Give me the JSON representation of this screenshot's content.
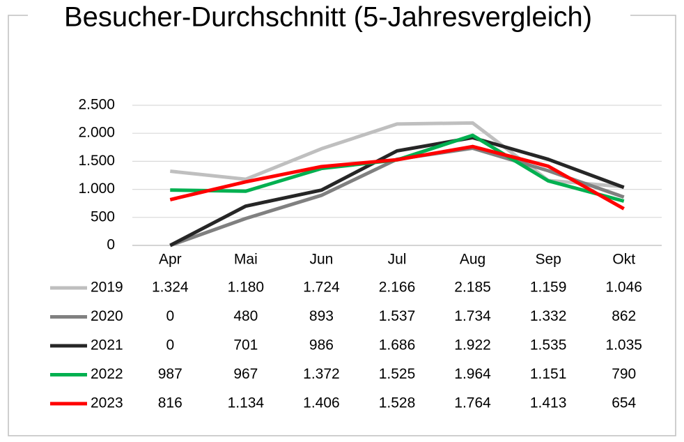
{
  "chart_data": {
    "type": "line",
    "title": "Besucher-Durchschnitt (5-Jahresvergleich)",
    "categories": [
      "Apr",
      "Mai",
      "Jun",
      "Jul",
      "Aug",
      "Sep",
      "Okt"
    ],
    "series": [
      {
        "name": "2019",
        "color": "#bfbfbf",
        "values": [
          1324,
          1180,
          1724,
          2166,
          2185,
          1159,
          1046
        ],
        "value_labels": [
          "1.324",
          "1.180",
          "1.724",
          "2.166",
          "2.185",
          "1.159",
          "1.046"
        ]
      },
      {
        "name": "2020",
        "color": "#808080",
        "values": [
          0,
          480,
          893,
          1537,
          1734,
          1332,
          862
        ],
        "value_labels": [
          "0",
          "480",
          "893",
          "1.537",
          "1.734",
          "1.332",
          "862"
        ]
      },
      {
        "name": "2021",
        "color": "#262626",
        "values": [
          0,
          701,
          986,
          1686,
          1922,
          1535,
          1035
        ],
        "value_labels": [
          "0",
          "701",
          "986",
          "1.686",
          "1.922",
          "1.535",
          "1.035"
        ]
      },
      {
        "name": "2022",
        "color": "#00b050",
        "values": [
          987,
          967,
          1372,
          1525,
          1964,
          1151,
          790
        ],
        "value_labels": [
          "987",
          "967",
          "1.372",
          "1.525",
          "1.964",
          "1.151",
          "790"
        ]
      },
      {
        "name": "2023",
        "color": "#ff0000",
        "values": [
          816,
          1134,
          1406,
          1528,
          1764,
          1413,
          654
        ],
        "value_labels": [
          "816",
          "1.134",
          "1.406",
          "1.528",
          "1.764",
          "1.413",
          "654"
        ]
      }
    ],
    "ylim": [
      0,
      2500
    ],
    "yticks": [
      0,
      500,
      {
        "value": 1000,
        "label": "1.000"
      },
      {
        "value": 1500,
        "label": "1.500"
      },
      {
        "value": 2000,
        "label": "2.000"
      },
      {
        "value": 2500,
        "label": "2.500"
      }
    ],
    "grid": true
  }
}
